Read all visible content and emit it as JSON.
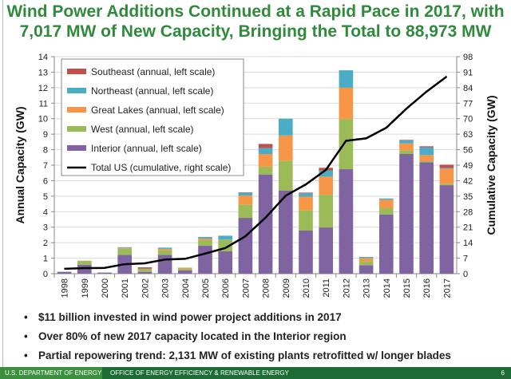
{
  "title": "Wind Power Additions Continued at a Rapid Pace in 2017, with 7,017 MW of New Capacity, Bringing the Total to 88,973 MW",
  "bullets": [
    "$11 billion invested in wind power project additions in 2017",
    "Over 80% of new 2017 capacity located in the Interior region",
    "Partial repowering trend: 2,131 MW of existing plants retrofitted w/ longer blades"
  ],
  "footer": {
    "org": "U.S. DEPARTMENT OF ENERGY",
    "office": "OFFICE OF ENERGY EFFICIENCY & RENEWABLE ENERGY",
    "page": "6"
  },
  "chart_data": {
    "type": "bar",
    "stacked": true,
    "categories": [
      "1998",
      "1999",
      "2000",
      "2001",
      "2002",
      "2003",
      "2004",
      "2005",
      "2006",
      "2007",
      "2008",
      "2009",
      "2010",
      "2011",
      "2012",
      "2013",
      "2014",
      "2015",
      "2016",
      "2017"
    ],
    "ylabel": "Annual Capacity (GW)",
    "ylabel_right": "Cumulative Capacity (GW)",
    "ylim": [
      0,
      14
    ],
    "yticks": [
      0,
      1,
      2,
      3,
      4,
      5,
      6,
      7,
      8,
      9,
      10,
      11,
      12,
      13,
      14
    ],
    "ylim_right": [
      0,
      98
    ],
    "yticks_right": [
      0,
      7,
      14,
      21,
      28,
      35,
      42,
      49,
      56,
      63,
      70,
      77,
      84,
      91,
      98
    ],
    "grid": true,
    "legend_position": "top-left",
    "series": [
      {
        "name": "Interior (annual, left scale)",
        "color": "#8064a2",
        "values": [
          0.12,
          0.58,
          0.07,
          1.22,
          0.12,
          1.22,
          0.22,
          1.8,
          1.44,
          3.6,
          6.4,
          5.37,
          2.78,
          2.98,
          6.74,
          0.55,
          3.82,
          7.72,
          7.19,
          5.71
        ]
      },
      {
        "name": "West (annual, left scale)",
        "color": "#9bbb59",
        "values": [
          0,
          0.24,
          0,
          0.38,
          0.2,
          0.29,
          0.11,
          0.36,
          0.76,
          0.86,
          0.5,
          1.92,
          1.32,
          2.11,
          3.24,
          0.26,
          0.4,
          0.24,
          0.07,
          0.09
        ]
      },
      {
        "name": "Great Lakes (annual, left scale)",
        "color": "#f79646",
        "values": [
          0,
          0.02,
          0,
          0.06,
          0,
          0.09,
          0.06,
          0.1,
          0,
          0.58,
          0.82,
          1.63,
          0.87,
          1.17,
          2.02,
          0.2,
          0.55,
          0.44,
          0.39,
          0.96
        ]
      },
      {
        "name": "Northeast (annual, left scale)",
        "color": "#4bacc6",
        "values": [
          0,
          0,
          0,
          0.05,
          0,
          0.08,
          0,
          0.11,
          0.25,
          0.19,
          0.39,
          1.08,
          0.21,
          0.4,
          1.12,
          0.07,
          0.08,
          0.19,
          0.5,
          0.05
        ]
      },
      {
        "name": "Southeast (annual, left scale)",
        "color": "#c0504d",
        "values": [
          0,
          0,
          0,
          0,
          0.09,
          0,
          0,
          0,
          0,
          0.02,
          0.26,
          0,
          0.05,
          0.17,
          0,
          0,
          0,
          0.04,
          0.07,
          0.22
        ]
      }
    ],
    "line": {
      "name": "Total US (cumulative, right scale)",
      "color": "#000000",
      "axis": "right",
      "values": [
        2.2,
        2.5,
        2.6,
        4.3,
        4.7,
        6.4,
        6.7,
        9.1,
        11.6,
        16.9,
        25.3,
        35.2,
        40.3,
        46.9,
        60.0,
        61.1,
        65.9,
        74.5,
        82.2,
        89.0
      ]
    }
  }
}
